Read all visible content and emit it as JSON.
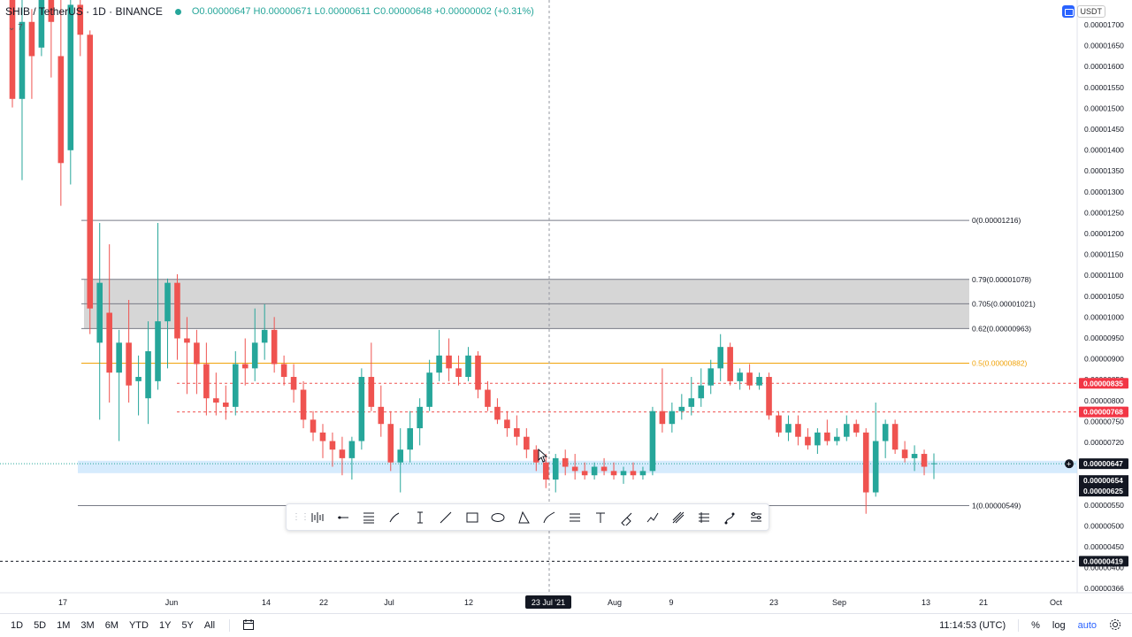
{
  "legend": {
    "symbol": "SHIB / TetherUS · 1D · BINANCE",
    "ohlc": "O0.00000647 H0.00000671 L0.00000611 C0.00000648 +0.00000002 (+0.31%)",
    "collapse_label": "7"
  },
  "currency_button": "USDT",
  "colors": {
    "up": "#26a69a",
    "down": "#ef5350",
    "fib_zone": "#d4d4d4",
    "fib_half": "#f0a30a",
    "highlight_band": "#bbdefb",
    "price_label_red": "#f23645",
    "price_label_dark": "#131722"
  },
  "chart_data": {
    "type": "candlestick",
    "symbol": "SHIB/USDT",
    "timeframe": "1D",
    "ylim": [
      3.4e-06,
      1.71e-05
    ],
    "price_axis_ticks": [
      "0.00001700",
      "0.00001650",
      "0.00001600",
      "0.00001550",
      "0.00001500",
      "0.00001450",
      "0.00001400",
      "0.00001350",
      "0.00001300",
      "0.00001250",
      "0.00001200",
      "0.00001150",
      "0.00001100",
      "0.00001050",
      "0.00001000",
      "0.00000950",
      "0.00000900",
      "0.00000850",
      "0.00000800",
      "0.00000750",
      "0.00000720",
      "0.00000650",
      "0.00000600",
      "0.00000550",
      "0.00000500",
      "0.00000450",
      "0.00000400",
      "0.00000366"
    ],
    "time_axis_ticks": [
      "17",
      "Jun",
      "14",
      "22",
      "Jul",
      "12",
      "23 Jul '21",
      "Aug",
      "9",
      "23",
      "Sep",
      "13",
      "21",
      "Oct"
    ],
    "price_labels": {
      "red_1": "0.00000835",
      "red_2": "0.00000768",
      "current": "0.00000647",
      "stack_1": "0.00000654",
      "stack_2": "0.00000625",
      "bottom": "0.00000419"
    },
    "fib_labels": [
      "0(0.00001216)",
      "0.79(0.00001078)",
      "0.705(0.00001021)",
      "0.62(0.00000963)",
      "0.5(0.00000882)",
      "1(0.00000549)"
    ],
    "fib_levels": [
      1.216e-05,
      1.078e-05,
      1.021e-05,
      9.63e-06,
      8.82e-06,
      5.49e-06
    ],
    "fib_zone": [
      9.63e-06,
      1.078e-05
    ],
    "highlight_band": [
      6.25e-06,
      6.54e-06
    ],
    "dashed_levels": [
      8.35e-06,
      7.68e-06,
      4.19e-06
    ],
    "candles": [
      [
        1.76e-05,
        1.79e-05,
        1.48e-05,
        1.5e-05
      ],
      [
        1.5e-05,
        1.82e-05,
        1.31e-05,
        1.68e-05
      ],
      [
        1.68e-05,
        1.71e-05,
        1.5e-05,
        1.6e-05
      ],
      [
        1.62e-05,
        1.86e-05,
        1.6e-05,
        1.78e-05
      ],
      [
        1.78e-05,
        1.85e-05,
        1.55e-05,
        1.68e-05
      ],
      [
        1.6e-05,
        1.8e-05,
        1.25e-05,
        1.35e-05
      ],
      [
        1.38e-05,
        1.88e-05,
        1.3e-05,
        1.72e-05
      ],
      [
        1.72e-05,
        1.74e-05,
        1.6e-05,
        1.65e-05
      ],
      [
        1.65e-05,
        1.66e-05,
        9.5e-06,
        1.01e-05
      ],
      [
        9.3e-06,
        1.21e-05,
        7.5e-06,
        1.07e-05
      ],
      [
        1e-05,
        1.16e-05,
        7.9e-06,
        8.6e-06
      ],
      [
        8.6e-06,
        9.6e-06,
        7e-06,
        9.3e-06
      ],
      [
        9.3e-06,
        1.03e-05,
        7.9e-06,
        8.3e-06
      ],
      [
        8.4e-06,
        9e-06,
        7.6e-06,
        8.5e-06
      ],
      [
        8e-06,
        9.8e-06,
        7.4e-06,
        9.1e-06
      ],
      [
        8.4e-06,
        1.21e-05,
        8.2e-06,
        9.8e-06
      ],
      [
        9.8e-06,
        1.08e-05,
        8.7e-06,
        1.07e-05
      ],
      [
        1.07e-05,
        1.09e-05,
        8.9e-06,
        9.4e-06
      ],
      [
        9.4e-06,
        9.9e-06,
        8.1e-06,
        9.3e-06
      ],
      [
        9.3e-06,
        9.6e-06,
        8.1e-06,
        8.8e-06
      ],
      [
        8.8e-06,
        9.3e-06,
        7.6e-06,
        8e-06
      ],
      [
        8e-06,
        8.6e-06,
        7.6e-06,
        7.9e-06
      ],
      [
        7.9e-06,
        8.3e-06,
        7.5e-06,
        7.8e-06
      ],
      [
        7.8e-06,
        9.1e-06,
        7.6e-06,
        8.8e-06
      ],
      [
        8.8e-06,
        9.4e-06,
        8.3e-06,
        8.7e-06
      ],
      [
        8.7e-06,
        1.01e-05,
        8.4e-06,
        9.3e-06
      ],
      [
        9.3e-06,
        1.02e-05,
        8.9e-06,
        9.6e-06
      ],
      [
        9.6e-06,
        9.9e-06,
        8.6e-06,
        8.8e-06
      ],
      [
        8.8e-06,
        9e-06,
        8.3e-06,
        8.5e-06
      ],
      [
        8.5e-06,
        8.8e-06,
        7.9e-06,
        8.2e-06
      ],
      [
        8.2e-06,
        8.4e-06,
        7.3e-06,
        7.5e-06
      ],
      [
        7.5e-06,
        7.7e-06,
        7e-06,
        7.2e-06
      ],
      [
        7.2e-06,
        7.4e-06,
        6.6e-06,
        7e-06
      ],
      [
        7e-06,
        7.2e-06,
        6.4e-06,
        6.8e-06
      ],
      [
        6.8e-06,
        7.1e-06,
        6.2e-06,
        6.6e-06
      ],
      [
        6.6e-06,
        7.1e-06,
        6.1e-06,
        7e-06
      ],
      [
        7e-06,
        8.7e-06,
        6.8e-06,
        8.5e-06
      ],
      [
        8.5e-06,
        9.3e-06,
        7.7e-06,
        7.8e-06
      ],
      [
        7.8e-06,
        8.3e-06,
        7.1e-06,
        7.4e-06
      ],
      [
        7.4e-06,
        7.7e-06,
        6.3e-06,
        6.5e-06
      ],
      [
        6.5e-06,
        7.3e-06,
        5.8e-06,
        6.8e-06
      ],
      [
        6.8e-06,
        7.7e-06,
        6.5e-06,
        7.3e-06
      ],
      [
        7.3e-06,
        8e-06,
        6.9e-06,
        7.8e-06
      ],
      [
        7.8e-06,
        8.9e-06,
        7.7e-06,
        8.6e-06
      ],
      [
        8.6e-06,
        9.6e-06,
        8.4e-06,
        9e-06
      ],
      [
        9e-06,
        9.4e-06,
        8.4e-06,
        8.7e-06
      ],
      [
        8.7e-06,
        9e-06,
        8.3e-06,
        8.5e-06
      ],
      [
        8.5e-06,
        9.2e-06,
        8.4e-06,
        9e-06
      ],
      [
        9e-06,
        9.1e-06,
        8e-06,
        8.2e-06
      ],
      [
        8.2e-06,
        8.4e-06,
        7.7e-06,
        7.8e-06
      ],
      [
        7.8e-06,
        8e-06,
        7.4e-06,
        7.5e-06
      ],
      [
        7.5e-06,
        7.7e-06,
        7.1e-06,
        7.3e-06
      ],
      [
        7.3e-06,
        7.6e-06,
        6.9e-06,
        7.1e-06
      ],
      [
        7.1e-06,
        7.3e-06,
        6.6e-06,
        6.8e-06
      ],
      [
        6.8e-06,
        6.9e-06,
        6.3e-06,
        6.5e-06
      ],
      [
        6.5e-06,
        6.7e-06,
        5.9e-06,
        6.1e-06
      ],
      [
        6.1e-06,
        6.7e-06,
        5.8e-06,
        6.6e-06
      ],
      [
        6.6e-06,
        6.8e-06,
        6.2e-06,
        6.4e-06
      ],
      [
        6.4e-06,
        6.7e-06,
        6.1e-06,
        6.3e-06
      ],
      [
        6.3e-06,
        6.5e-06,
        6.1e-06,
        6.2e-06
      ],
      [
        6.2e-06,
        6.5e-06,
        6.1e-06,
        6.4e-06
      ],
      [
        6.4e-06,
        6.6e-06,
        6.2e-06,
        6.3e-06
      ],
      [
        6.3e-06,
        6.5e-06,
        6.1e-06,
        6.2e-06
      ],
      [
        6.2e-06,
        6.4e-06,
        6e-06,
        6.3e-06
      ],
      [
        6.3e-06,
        6.5e-06,
        6.1e-06,
        6.2e-06
      ],
      [
        6.2e-06,
        6.4e-06,
        6.1e-06,
        6.3e-06
      ],
      [
        6.3e-06,
        7.8e-06,
        6.2e-06,
        7.7e-06
      ],
      [
        7.7e-06,
        8.7e-06,
        7.2e-06,
        7.4e-06
      ],
      [
        7.4e-06,
        7.9e-06,
        7.2e-06,
        7.7e-06
      ],
      [
        7.7e-06,
        8.1e-06,
        7.5e-06,
        7.8e-06
      ],
      [
        7.8e-06,
        8.5e-06,
        7.6e-06,
        8e-06
      ],
      [
        8e-06,
        8.7e-06,
        7.8e-06,
        8.3e-06
      ],
      [
        8.3e-06,
        8.9e-06,
        8.1e-06,
        8.7e-06
      ],
      [
        8.7e-06,
        9.5e-06,
        8.4e-06,
        9.2e-06
      ],
      [
        9.2e-06,
        9.3e-06,
        8.3e-06,
        8.4e-06
      ],
      [
        8.4e-06,
        8.7e-06,
        8.2e-06,
        8.6e-06
      ],
      [
        8.6e-06,
        8.8e-06,
        8.2e-06,
        8.3e-06
      ],
      [
        8.3e-06,
        8.6e-06,
        8.2e-06,
        8.5e-06
      ],
      [
        8.5e-06,
        8.6e-06,
        7.5e-06,
        7.6e-06
      ],
      [
        7.6e-06,
        7.7e-06,
        7.1e-06,
        7.2e-06
      ],
      [
        7.2e-06,
        7.6e-06,
        7e-06,
        7.4e-06
      ],
      [
        7.4e-06,
        7.6e-06,
        6.9e-06,
        7.1e-06
      ],
      [
        7.1e-06,
        7.3e-06,
        6.8e-06,
        6.9e-06
      ],
      [
        6.9e-06,
        7.3e-06,
        6.7e-06,
        7.2e-06
      ],
      [
        7.2e-06,
        7.5e-06,
        6.9e-06,
        7e-06
      ],
      [
        7e-06,
        7.3e-06,
        6.9e-06,
        7.1e-06
      ],
      [
        7.1e-06,
        7.6e-06,
        7e-06,
        7.4e-06
      ],
      [
        7.4e-06,
        7.5e-06,
        7.1e-06,
        7.2e-06
      ],
      [
        7.2e-06,
        7.3e-06,
        5.3e-06,
        5.8e-06
      ],
      [
        5.8e-06,
        7.9e-06,
        5.7e-06,
        7e-06
      ],
      [
        7e-06,
        7.5e-06,
        6.6e-06,
        7.4e-06
      ],
      [
        7.4e-06,
        7.5e-06,
        6.7e-06,
        6.8e-06
      ],
      [
        6.8e-06,
        7e-06,
        6.5e-06,
        6.6e-06
      ],
      [
        6.6e-06,
        6.9e-06,
        6.3e-06,
        6.7e-06
      ],
      [
        6.7e-06,
        6.8e-06,
        6.2e-06,
        6.4e-06
      ],
      [
        6.47e-06,
        6.71e-06,
        6.11e-06,
        6.48e-06
      ]
    ]
  },
  "time_badge": "23 Jul '21",
  "drawing_tools": [
    "grip",
    "bars-pattern",
    "horizontal-ray",
    "fib-retracement",
    "brush",
    "cross-line",
    "trend-line",
    "rectangle",
    "ellipse",
    "triangle",
    "curve",
    "horizontal-lines",
    "text",
    "highlighter",
    "path",
    "pitchfork",
    "parallel-lines",
    "bezier",
    "settings-lines"
  ],
  "bottom_bar": {
    "ranges": [
      "1D",
      "5D",
      "1M",
      "3M",
      "6M",
      "YTD",
      "1Y",
      "5Y",
      "All"
    ],
    "clock": "11:14:53 (UTC)",
    "percent": "%",
    "log": "log",
    "auto": "auto"
  }
}
